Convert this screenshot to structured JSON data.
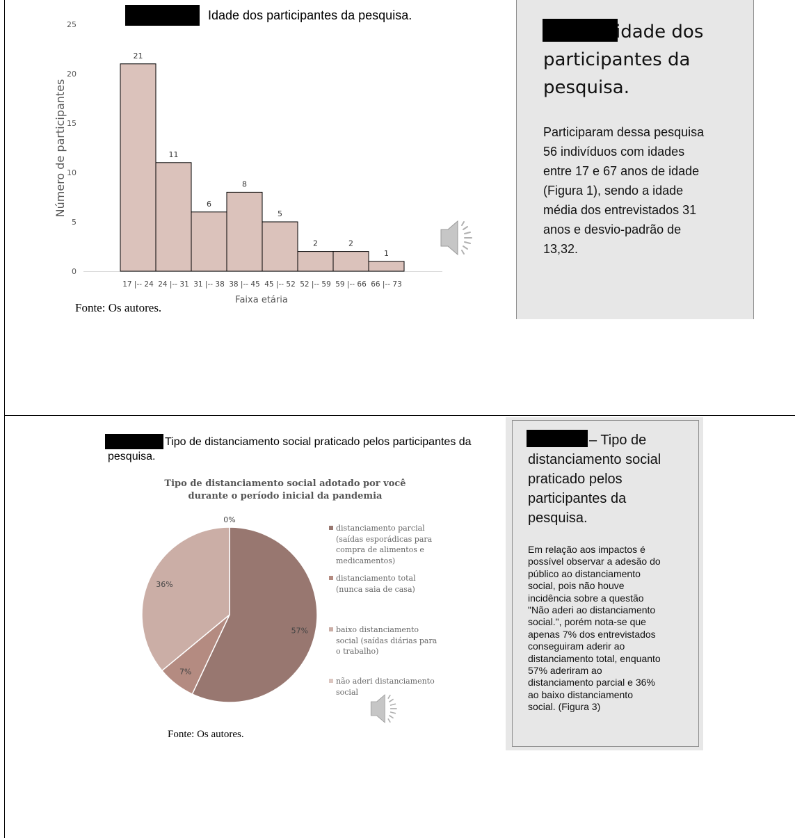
{
  "slide1": {
    "caption": "Idade dos participantes da pesquisa.",
    "fonte": "Fonte: Os autores.",
    "panel_title_lines": [
      " idade dos",
      "participantes da",
      "pesquisa."
    ],
    "panel_body_lines": [
      "Participaram dessa pesquisa",
      "56 indivíduos com idades",
      "entre 17 e 67 anos de idade",
      "(Figura 1), sendo a idade",
      "média dos entrevistados 31",
      "anos e desvio-padrão de",
      "13,32."
    ],
    "speaker_icon": "speaker-icon"
  },
  "slide2": {
    "caption_line1": "Tipo de distanciamento social praticado pelos participantes da",
    "caption_line2": "pesquisa.",
    "fonte": "Fonte: Os autores.",
    "panel_title_first": "– Tipo de",
    "panel_title_lines": [
      "distanciamento social",
      "praticado pelos",
      "participantes da",
      "pesquisa."
    ],
    "panel_body_lines": [
      "Em relação aos impactos é",
      "possível observar a adesão do",
      "público ao distanciamento",
      "social, pois não houve",
      "incidência sobre a questão",
      "\"Não aderi ao distanciamento",
      "social.\", porém nota-se que",
      "apenas 7% dos entrevistados",
      "conseguiram aderir ao",
      "distanciamento total, enquanto",
      "57% aderiram ao",
      "distanciamento parcial e 36%",
      "ao baixo distanciamento",
      "social. (Figura 3)"
    ],
    "speaker_icon": "speaker-icon"
  },
  "chart_data": [
    {
      "type": "bar",
      "title": "",
      "xlabel": "Faixa etária",
      "ylabel": "Número de participantes",
      "categories": [
        "17 |-- 24",
        "24 |-- 31",
        "31 |-- 38",
        "38 |-- 45",
        "45 |-- 52",
        "52 |-- 59",
        "59 |-- 66",
        "66 |-- 73"
      ],
      "values": [
        21,
        11,
        6,
        8,
        5,
        2,
        2,
        1
      ],
      "data_labels": [
        "21",
        "11",
        "6",
        "8",
        "5",
        "2",
        "2",
        "1"
      ],
      "ylim": [
        0,
        25
      ],
      "yticks": [
        0,
        5,
        10,
        15,
        20,
        25
      ],
      "grid": false,
      "bar_color": "#dbc2bb",
      "bar_edge_color": "#000000"
    },
    {
      "type": "pie",
      "title": "Tipo de distanciamento social adotado por você durante o período inicial da pandemia",
      "title_lines": [
        "Tipo de distanciamento social adotado por você",
        "durante o período inicial da pandemia"
      ],
      "labels": [
        "distanciamento parcial (saídas esporádicas para compra de alimentos e medicamentos)",
        "distanciamento total (nunca saia de casa)",
        "baixo distanciamento social (saídas diárias para o trabalho)",
        "não aderi distanciamento social"
      ],
      "legend_lines": [
        [
          "distanciamento parcial",
          "(saídas esporádicas para",
          "compra de alimentos e",
          "medicamentos)"
        ],
        [
          "distanciamento total",
          "(nunca saia de casa)"
        ],
        [
          "baixo distanciamento",
          "social (saídas diárias para",
          "o trabalho)"
        ],
        [
          "não aderi distanciamento",
          "social"
        ]
      ],
      "values": [
        57,
        7,
        36,
        0
      ],
      "data_labels": [
        "57%",
        "7%",
        "36%",
        "0%"
      ],
      "colors": [
        "#987770",
        "#b48b81",
        "#cbaea6",
        "#dcc6c0"
      ],
      "legend_position": "right"
    }
  ]
}
